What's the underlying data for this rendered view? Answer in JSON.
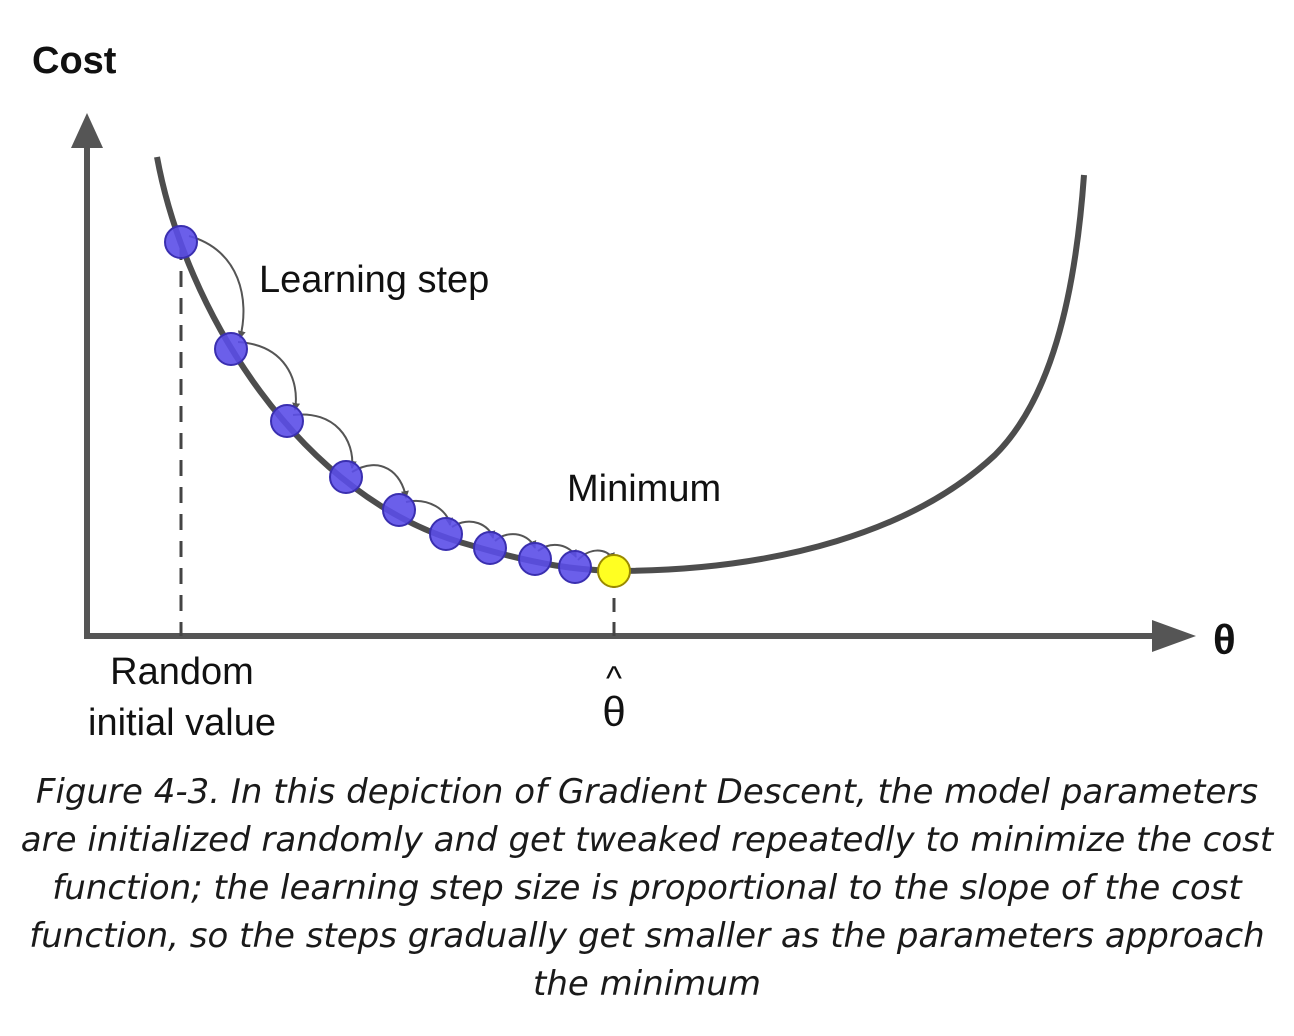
{
  "diagram": {
    "y_axis_label": "Cost",
    "x_axis_label": "θ",
    "learning_step_label": "Learning step",
    "minimum_label": "Minimum",
    "random_label_line1": "Random",
    "random_label_line2": "initial value",
    "theta_hat_label": "θ",
    "theta_hat_mark": "^",
    "colors": {
      "axis": "#555555",
      "curve": "#4d4d4d",
      "step_fill": "#5b4ee8",
      "step_stroke": "#3a2fb0",
      "minimum_fill": "#ffff22",
      "minimum_stroke": "#9a8a00"
    },
    "step_count": 9
  },
  "caption": "Figure 4-3. In this depiction of Gradient Descent, the model parameters are initialized randomly and get tweaked repeatedly to minimize the cost function; the learning step size is proportional to the slope of the cost function, so the steps gradually get smaller as the parameters approach the minimum"
}
